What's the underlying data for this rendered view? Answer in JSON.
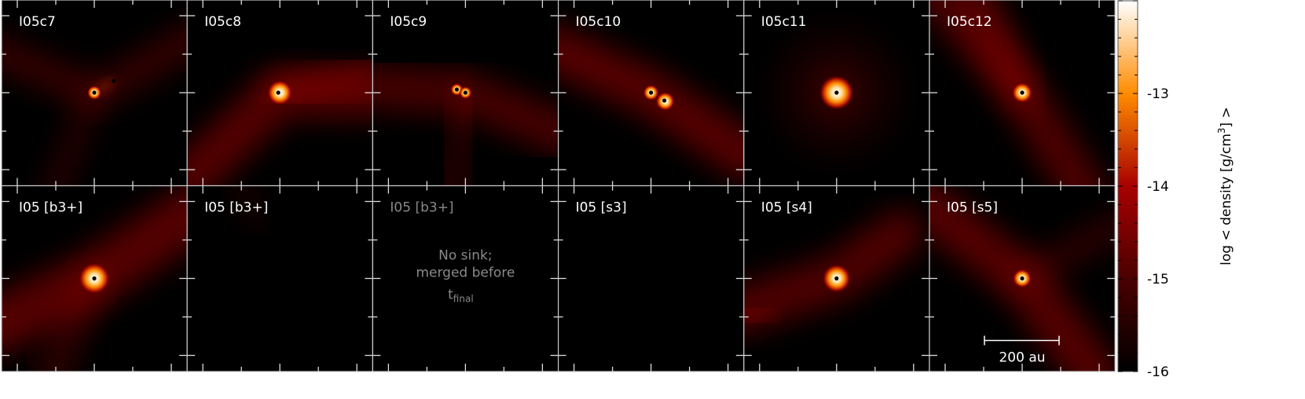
{
  "chart_data": {
    "type": "heatmap",
    "layout": "2 rows x 6 columns of projected density maps",
    "panels": [
      {
        "label": "I05c7",
        "sinks": 2
      },
      {
        "label": "I05c8",
        "sinks": 1
      },
      {
        "label": "I05c9",
        "sinks": 2
      },
      {
        "label": "I05c10",
        "sinks": 2
      },
      {
        "label": "I05c11",
        "sinks": 1
      },
      {
        "label": "I05c12",
        "sinks": 1
      },
      {
        "label": "I05 [b3+]",
        "sinks": 1
      },
      {
        "label": "I05 [b3+]",
        "sinks": 0
      },
      {
        "label": "I05 [b3+]",
        "sinks": 0,
        "dimmed": true,
        "note": [
          "No sink;",
          "merged before"
        ],
        "note_t": "t",
        "note_sub": "final"
      },
      {
        "label": "I05 [s3]",
        "sinks": 0
      },
      {
        "label": "I05 [s4]",
        "sinks": 1
      },
      {
        "label": "I05 [s5]",
        "sinks": 1
      }
    ],
    "scale_bar": {
      "label": "200 au",
      "length_au": 200
    },
    "colorbar": {
      "label": "log < density [g/cm³] >",
      "label_prefix": "log < density [g/cm",
      "label_sup": "3",
      "label_suffix": "] >",
      "range": [
        -16,
        -12
      ],
      "ticks": [
        "-13",
        "-14",
        "-15",
        "-16"
      ],
      "colormap": [
        "#000000",
        "#5a0000",
        "#a00000",
        "#ff8c00",
        "#ffffff"
      ]
    }
  }
}
